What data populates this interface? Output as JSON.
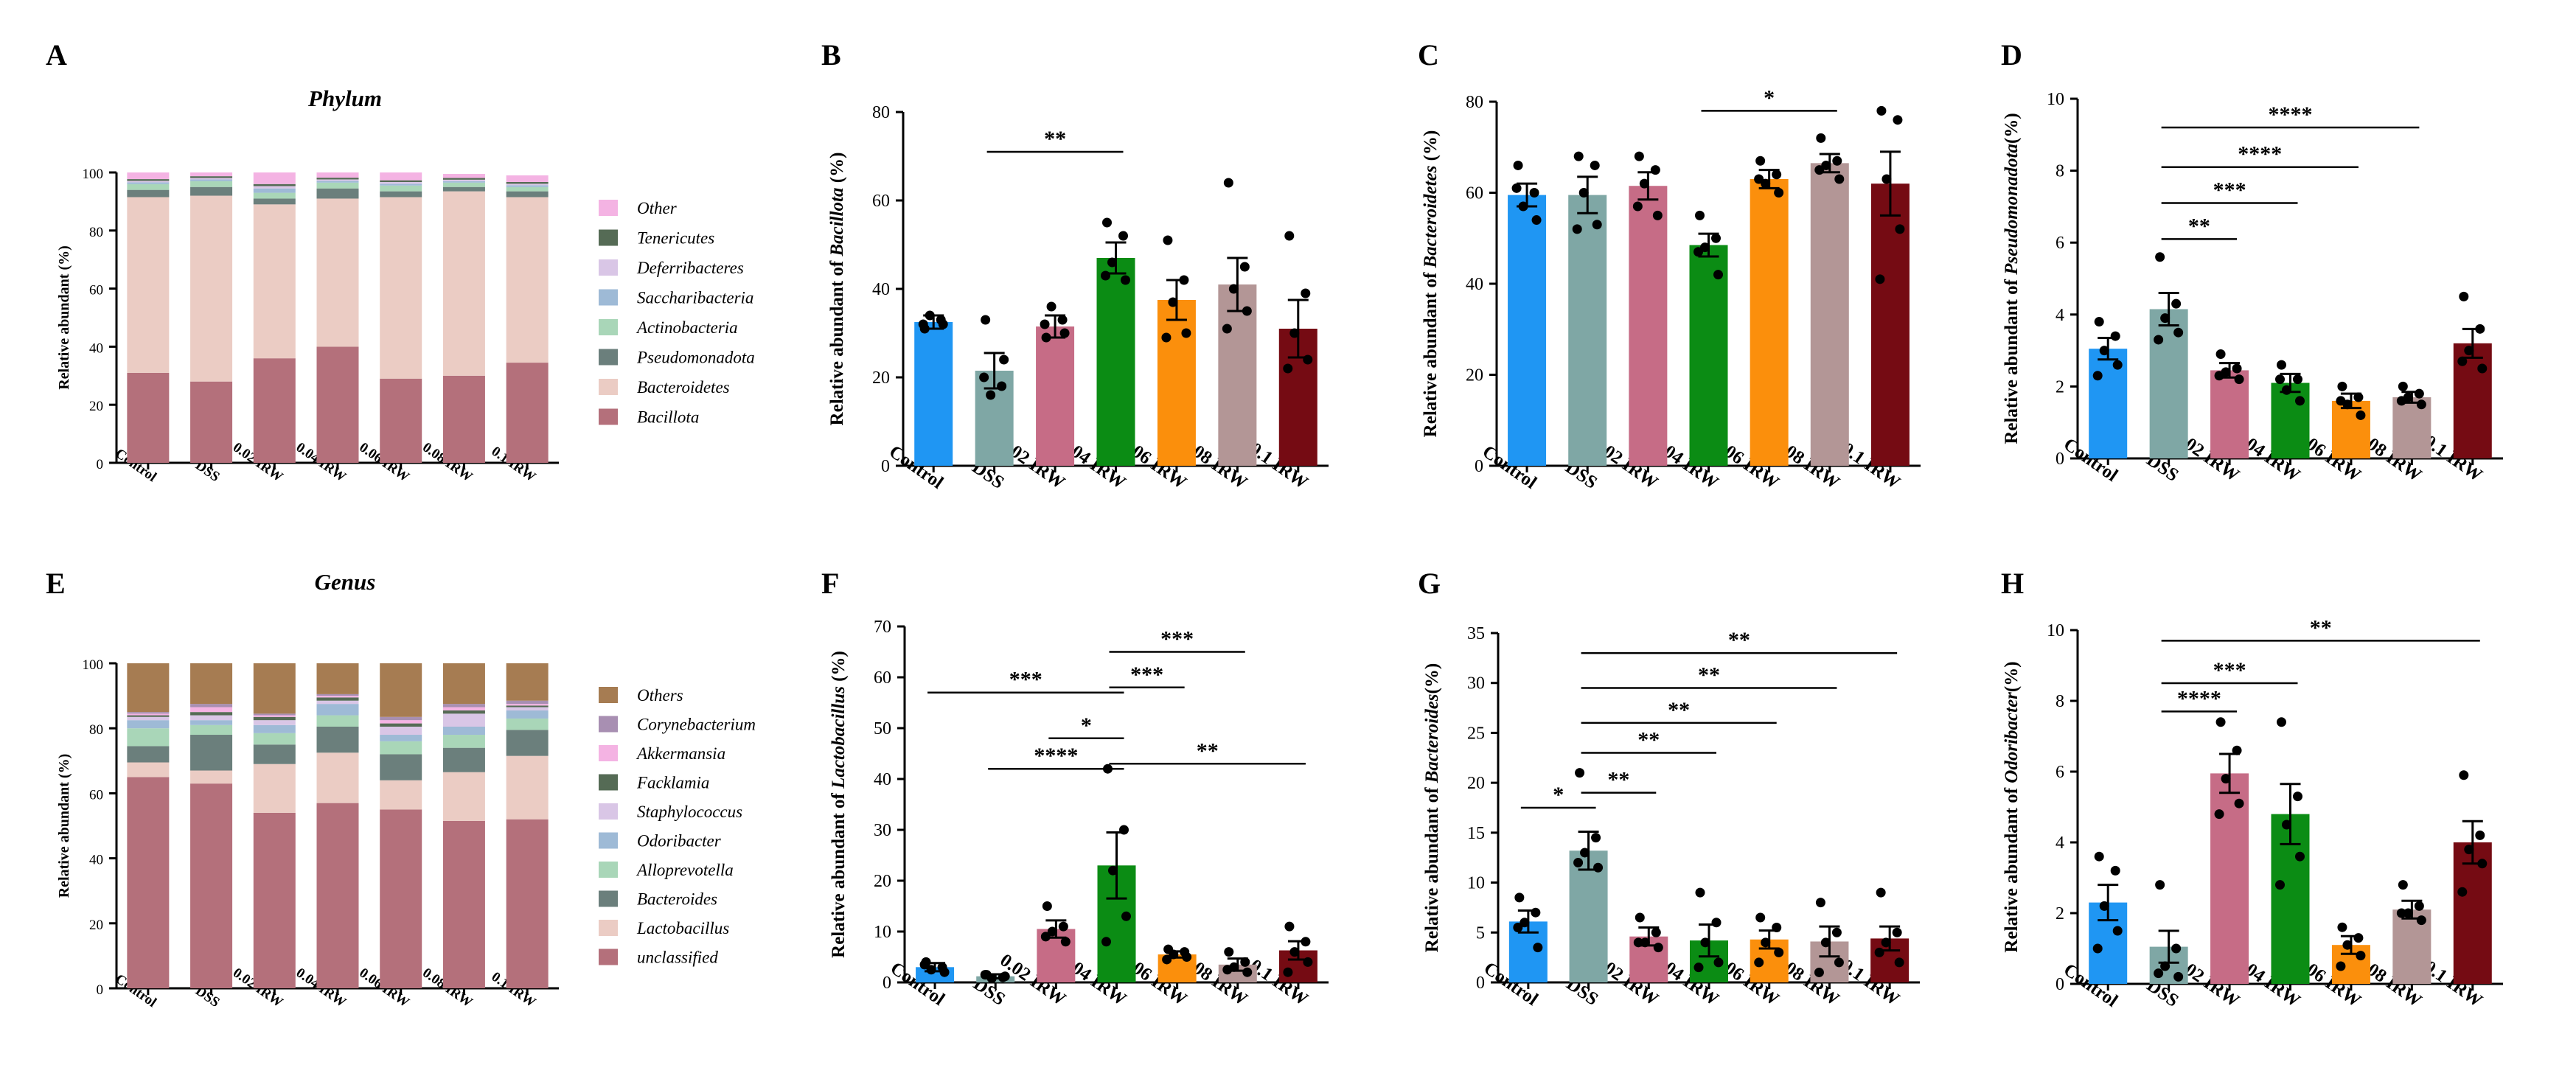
{
  "panel_letters": [
    "A",
    "B",
    "C",
    "D",
    "E",
    "F",
    "G",
    "H"
  ],
  "chart_data": [
    {
      "panel": "A",
      "type": "stacked-bar",
      "title": "Phylum",
      "ylabel": "Relative abundant (%)",
      "ylim": [
        0,
        100
      ],
      "yticks": [
        0,
        20,
        40,
        60,
        80,
        100
      ],
      "categories": [
        "Control",
        "DSS",
        "0.02 IRW",
        "0.04 IRW",
        "0.06 IRW",
        "0.08 IRW",
        "0.1 IRW"
      ],
      "series": [
        {
          "name": "Bacillota",
          "color": "#b4707b",
          "values": [
            31,
            28,
            36,
            40,
            29,
            30,
            34.5
          ]
        },
        {
          "name": "Bacteroidetes",
          "color": "#ebccc4",
          "values": [
            60.5,
            64,
            53,
            51,
            62.5,
            63.5,
            57
          ]
        },
        {
          "name": "Pseudomonadota",
          "color": "#6b7f7c",
          "values": [
            2.5,
            3,
            2,
            3.5,
            2,
            1.5,
            2
          ]
        },
        {
          "name": "Actinobacteria",
          "color": "#a9d6b8",
          "values": [
            2,
            2,
            2,
            2,
            2,
            1.5,
            1.5
          ]
        },
        {
          "name": "Saccharibacteria",
          "color": "#9ebad6",
          "values": [
            0.6,
            0.6,
            1.5,
            0.6,
            0.6,
            0.5,
            0.6
          ]
        },
        {
          "name": "Deferribacteres",
          "color": "#d9c6e6",
          "values": [
            0.5,
            0.5,
            0.8,
            0.5,
            0.6,
            0.5,
            0.5
          ]
        },
        {
          "name": "Tenericutes",
          "color": "#556b55",
          "values": [
            0.6,
            0.6,
            0.7,
            0.6,
            0.6,
            0.6,
            0.6
          ]
        },
        {
          "name": "Other",
          "color": "#f4b3e3",
          "values": [
            2.3,
            1.3,
            4,
            1.8,
            2.7,
            1.4,
            2.3
          ]
        }
      ]
    },
    {
      "panel": "B",
      "type": "bar",
      "ylabel_pre": "Relative abundant of ",
      "ylabel_taxon": "Bacillota",
      "ylabel_post": " (%)",
      "ylim": [
        0,
        80
      ],
      "yticks": [
        0,
        20,
        40,
        60,
        80
      ],
      "categories": [
        "Control",
        "DSS",
        "0.02 IRW",
        "0.04 IRW",
        "0.06 IRW",
        "0.08 IRW",
        "0.1 IRW"
      ],
      "colors": [
        "#1f96f3",
        "#7fa7a5",
        "#c66c86",
        "#0b8c14",
        "#fb8f0c",
        "#b39696",
        "#750b13"
      ],
      "values": [
        32.5,
        21.5,
        31.5,
        47,
        37.5,
        41,
        31
      ],
      "errors": [
        1.5,
        4,
        2.5,
        3.5,
        4.5,
        6,
        6.5
      ],
      "points": [
        [
          31,
          33,
          34,
          32,
          32
        ],
        [
          33,
          18,
          16,
          24,
          20
        ],
        [
          29,
          33,
          36,
          30,
          32
        ],
        [
          55,
          52,
          46,
          42,
          43
        ],
        [
          51,
          42,
          37,
          30,
          29
        ],
        [
          64,
          45,
          40,
          35,
          31
        ],
        [
          52,
          39,
          30,
          24,
          22
        ]
      ],
      "significance": [
        {
          "from": 1,
          "to": 3,
          "label": "**",
          "y": 71
        }
      ]
    },
    {
      "panel": "C",
      "type": "bar",
      "ylabel_pre": "Relative abundant of ",
      "ylabel_taxon": "Bacteroidetes",
      "ylabel_post": " (%)",
      "ylim": [
        0,
        80
      ],
      "yticks": [
        0,
        20,
        40,
        60,
        80
      ],
      "categories": [
        "Control",
        "DSS",
        "0.02 IRW",
        "0.04 IRW",
        "0.06 IRW",
        "0.08 IRW",
        "0.1 IRW"
      ],
      "colors": [
        "#1f96f3",
        "#7fa7a5",
        "#c66c86",
        "#0b8c14",
        "#fb8f0c",
        "#b39696",
        "#750b13"
      ],
      "values": [
        59.5,
        59.5,
        61.5,
        48.5,
        63,
        66.5,
        62
      ],
      "errors": [
        2.5,
        4,
        3,
        2.5,
        2,
        2,
        7
      ],
      "points": [
        [
          66,
          60,
          57,
          54,
          61
        ],
        [
          68,
          66,
          60,
          53,
          52
        ],
        [
          68,
          65,
          62,
          55,
          57
        ],
        [
          55,
          50,
          48,
          42,
          47
        ],
        [
          67,
          64,
          62,
          60,
          63
        ],
        [
          72,
          67,
          66,
          63,
          65
        ],
        [
          78,
          76,
          63,
          52,
          41
        ]
      ],
      "significance": [
        {
          "from": 3,
          "to": 5,
          "label": "*",
          "y": 78
        }
      ]
    },
    {
      "panel": "D",
      "type": "bar",
      "ylabel_pre": "Relative abundant of ",
      "ylabel_taxon": "Pseudomonadota",
      "ylabel_post": "(%)",
      "ylim": [
        0,
        10
      ],
      "yticks": [
        0,
        2,
        4,
        6,
        8,
        10
      ],
      "categories": [
        "Control",
        "DSS",
        "0.02 IRW",
        "0.04 IRW",
        "0.06 IRW",
        "0.08 IRW",
        "0.1 IRW"
      ],
      "colors": [
        "#1f96f3",
        "#7fa7a5",
        "#c66c86",
        "#0b8c14",
        "#fb8f0c",
        "#b39696",
        "#750b13"
      ],
      "values": [
        3.05,
        4.15,
        2.45,
        2.1,
        1.6,
        1.7,
        3.2
      ],
      "errors": [
        0.3,
        0.45,
        0.2,
        0.25,
        0.2,
        0.15,
        0.4
      ],
      "points": [
        [
          3.8,
          3.4,
          3,
          2.6,
          2.3
        ],
        [
          5.6,
          4.3,
          3.9,
          3.5,
          3.3
        ],
        [
          2.9,
          2.5,
          2.4,
          2.2,
          2.3
        ],
        [
          2.6,
          2.2,
          1.9,
          1.6,
          2.2
        ],
        [
          2,
          1.7,
          1.5,
          1.2,
          1.6
        ],
        [
          2,
          1.8,
          1.7,
          1.5,
          1.6
        ],
        [
          4.5,
          3.6,
          3,
          2.5,
          2.7
        ]
      ],
      "significance": [
        {
          "from": 1,
          "to": 2,
          "label": "**",
          "y": 6.1
        },
        {
          "from": 1,
          "to": 3,
          "label": "***",
          "y": 7.1
        },
        {
          "from": 1,
          "to": 4,
          "label": "****",
          "y": 8.1
        },
        {
          "from": 1,
          "to": 5,
          "label": "****",
          "y": 9.2
        }
      ]
    },
    {
      "panel": "E",
      "type": "stacked-bar",
      "title": "Genus",
      "ylabel": "Relative abundant (%)",
      "ylim": [
        0,
        100
      ],
      "yticks": [
        0,
        20,
        40,
        60,
        80,
        100
      ],
      "categories": [
        "Control",
        "DSS",
        "0.02 IRW",
        "0.04 IRW",
        "0.06 IRW",
        "0.08 IRW",
        "0.1 IRW"
      ],
      "series": [
        {
          "name": "unclassified",
          "color": "#b4707b",
          "values": [
            65,
            63,
            54,
            57,
            55,
            51.5,
            52
          ]
        },
        {
          "name": "Lactobacillus",
          "color": "#ebccc4",
          "values": [
            4.5,
            4,
            15,
            15.5,
            9,
            15,
            19.5
          ]
        },
        {
          "name": "Bacteroides",
          "color": "#6b7f7c",
          "values": [
            5,
            11,
            6,
            8,
            8,
            7.5,
            8
          ]
        },
        {
          "name": "Alloprevotella",
          "color": "#a9d6b8",
          "values": [
            5.5,
            3,
            3.5,
            3.5,
            4,
            4,
            3.5
          ]
        },
        {
          "name": "Odoribacter",
          "color": "#9ebad6",
          "values": [
            2.5,
            1.5,
            2.5,
            3.5,
            2,
            2.5,
            2.5
          ]
        },
        {
          "name": "Staphylococcus",
          "color": "#d9c6e6",
          "values": [
            1,
            1.5,
            1.5,
            1,
            2.5,
            4,
            1
          ]
        },
        {
          "name": "Facklamia",
          "color": "#556b55",
          "values": [
            0.5,
            1,
            1,
            1,
            1,
            1,
            0.5
          ]
        },
        {
          "name": "Akkermansia",
          "color": "#f4b3e3",
          "values": [
            0.5,
            1.5,
            0.5,
            0.5,
            1,
            1,
            0.5
          ]
        },
        {
          "name": "Corynebacterium",
          "color": "#a88fb2",
          "values": [
            0.5,
            1,
            0.5,
            0.5,
            1,
            1,
            1
          ]
        },
        {
          "name": "Others",
          "color": "#a67c52",
          "values": [
            15,
            12.5,
            15.5,
            9.5,
            16.5,
            12.5,
            11.5
          ]
        }
      ]
    },
    {
      "panel": "F",
      "type": "bar",
      "ylabel_pre": "Relative abundant of ",
      "ylabel_taxon": "Lactobacillus",
      "ylabel_post": " (%)",
      "ylim": [
        0,
        70
      ],
      "yticks": [
        0,
        10,
        20,
        30,
        40,
        50,
        60,
        70
      ],
      "categories": [
        "Control",
        "DSS",
        "0.02 IRW",
        "0.04 IRW",
        "0.06 IRW",
        "0.08 IRW",
        "0.1 IRW"
      ],
      "colors": [
        "#1f96f3",
        "#7fa7a5",
        "#c66c86",
        "#0b8c14",
        "#fb8f0c",
        "#b39696",
        "#750b13"
      ],
      "values": [
        3,
        1.2,
        10.5,
        23,
        5.5,
        3.5,
        6.3
      ],
      "errors": [
        0.8,
        0.4,
        1.7,
        6.5,
        0.6,
        1.2,
        1.8
      ],
      "points": [
        [
          4,
          3,
          2.5,
          2,
          3.5
        ],
        [
          1.5,
          1,
          0.8,
          1.2,
          1.5
        ],
        [
          15,
          11,
          10,
          8,
          9
        ],
        [
          42,
          30,
          22,
          13,
          8
        ],
        [
          6.5,
          6,
          5.5,
          5,
          4.5
        ],
        [
          6,
          4,
          3,
          2,
          2.5
        ],
        [
          11,
          8,
          6,
          4,
          2
        ]
      ],
      "significance": [
        {
          "from": 0,
          "to": 3,
          "label": "***",
          "y": 57
        },
        {
          "from": 2,
          "to": 3,
          "label": "*",
          "y": 48
        },
        {
          "from": 1,
          "to": 3,
          "label": "****",
          "y": 42
        },
        {
          "from": 3,
          "to": 6,
          "label": "**",
          "y": 43
        },
        {
          "from": 3,
          "to": 4,
          "label": "***",
          "y": 58
        },
        {
          "from": 3,
          "to": 5,
          "label": "***",
          "y": 65
        }
      ]
    },
    {
      "panel": "G",
      "type": "bar",
      "ylabel_pre": "Relative abundant of ",
      "ylabel_taxon": "Bacteroides",
      "ylabel_post": "(%)",
      "ylim": [
        0,
        35
      ],
      "yticks": [
        0,
        5,
        10,
        15,
        20,
        25,
        30,
        35
      ],
      "categories": [
        "Control",
        "DSS",
        "0.02 IRW",
        "0.04 IRW",
        "0.06 IRW",
        "0.08 IRW",
        "0.1 IRW"
      ],
      "colors": [
        "#1f96f3",
        "#7fa7a5",
        "#c66c86",
        "#0b8c14",
        "#fb8f0c",
        "#b39696",
        "#750b13"
      ],
      "values": [
        6.1,
        13.2,
        4.6,
        4.2,
        4.3,
        4.1,
        4.4
      ],
      "errors": [
        1.1,
        1.9,
        0.9,
        1.6,
        0.9,
        1.5,
        1.2
      ],
      "points": [
        [
          8.5,
          7,
          6,
          3.5,
          5.5
        ],
        [
          21,
          14.5,
          13,
          11.5,
          12
        ],
        [
          6.5,
          5,
          4,
          3.5,
          4
        ],
        [
          9,
          6,
          4,
          2,
          1.5
        ],
        [
          6.5,
          5.5,
          4,
          3,
          2
        ],
        [
          8,
          5,
          4,
          2,
          1
        ],
        [
          9,
          5,
          4,
          2,
          3
        ]
      ],
      "significance": [
        {
          "from": 0,
          "to": 1,
          "label": "*",
          "y": 17.5
        },
        {
          "from": 1,
          "to": 2,
          "label": "**",
          "y": 19
        },
        {
          "from": 1,
          "to": 3,
          "label": "**",
          "y": 23
        },
        {
          "from": 1,
          "to": 4,
          "label": "**",
          "y": 26
        },
        {
          "from": 1,
          "to": 5,
          "label": "**",
          "y": 29.5
        },
        {
          "from": 1,
          "to": 6,
          "label": "**",
          "y": 33
        }
      ]
    },
    {
      "panel": "H",
      "type": "bar",
      "ylabel_pre": "Relative abundant of ",
      "ylabel_taxon": "Odoribacter",
      "ylabel_post": "(%)",
      "ylim": [
        0,
        10
      ],
      "yticks": [
        0,
        2,
        4,
        6,
        8,
        10
      ],
      "categories": [
        "Control",
        "DSS",
        "0.02 IRW",
        "0.04 IRW",
        "0.06 IRW",
        "0.08 IRW",
        "0.1 IRW"
      ],
      "colors": [
        "#1f96f3",
        "#7fa7a5",
        "#c66c86",
        "#0b8c14",
        "#fb8f0c",
        "#b39696",
        "#750b13"
      ],
      "values": [
        2.3,
        1.05,
        5.95,
        4.8,
        1.1,
        2.1,
        4
      ],
      "errors": [
        0.5,
        0.45,
        0.55,
        0.85,
        0.25,
        0.25,
        0.6
      ],
      "points": [
        [
          3.6,
          3.2,
          2.2,
          1.5,
          1
        ],
        [
          2.8,
          1,
          0.5,
          0.2,
          0.3
        ],
        [
          7.4,
          6.6,
          5.8,
          5.1,
          4.8
        ],
        [
          7.4,
          5.3,
          4.5,
          3.6,
          2.8
        ],
        [
          1.6,
          1.3,
          1.1,
          0.8,
          0.5
        ],
        [
          2.8,
          2.2,
          2,
          1.8,
          2
        ],
        [
          5.9,
          4.2,
          3.8,
          3.4,
          2.6
        ]
      ],
      "significance": [
        {
          "from": 1,
          "to": 2,
          "label": "****",
          "y": 7.7
        },
        {
          "from": 1,
          "to": 3,
          "label": "***",
          "y": 8.5
        },
        {
          "from": 1,
          "to": 6,
          "label": "**",
          "y": 9.7
        }
      ]
    }
  ]
}
